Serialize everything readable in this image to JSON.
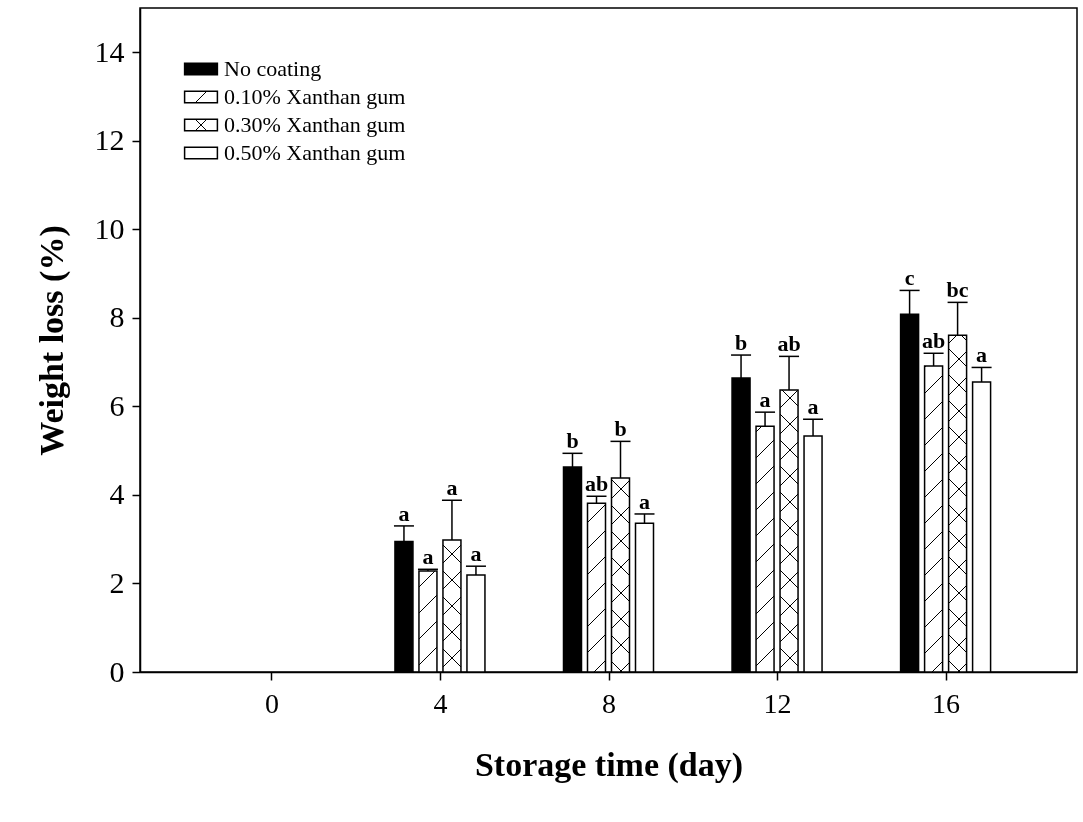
{
  "chart_data": {
    "type": "bar",
    "xlabel": "Storage time (day)",
    "ylabel": "Weight loss (%)",
    "x": [
      4,
      8,
      12,
      16
    ],
    "xlim": [
      -3,
      19
    ],
    "xticks": [
      0,
      4,
      8,
      12,
      16
    ],
    "ylim": [
      0,
      15
    ],
    "yticks": [
      0,
      2,
      4,
      6,
      8,
      10,
      12,
      14
    ],
    "legend": "top left",
    "grid": false,
    "series": [
      {
        "name": "No coating",
        "color": "#000000",
        "values": [
          2.95,
          4.63,
          6.64,
          8.08
        ],
        "errors": [
          [
            2.95,
            3.3
          ],
          [
            4.63,
            4.94
          ],
          [
            6.64,
            7.16
          ],
          [
            8.08,
            8.62
          ]
        ],
        "value_labels": [
          "a",
          "b",
          "b",
          "c"
        ]
      },
      {
        "name": "0.10% Xanthan gum",
        "color": "#ffffff",
        "values": [
          2.28,
          3.81,
          5.55,
          6.91
        ],
        "errors": [
          [
            2.28,
            2.32
          ],
          [
            3.81,
            3.97
          ],
          [
            5.55,
            5.87
          ],
          [
            6.91,
            7.2
          ]
        ],
        "value_labels": [
          "a",
          "ab",
          "a",
          "ab"
        ]
      },
      {
        "name": "0.30% Xanthan gum",
        "color": "#ffffff",
        "values": [
          2.98,
          4.38,
          6.37,
          7.61
        ],
        "errors": [
          [
            2.98,
            3.88
          ],
          [
            4.38,
            5.21
          ],
          [
            6.37,
            7.13
          ],
          [
            7.61,
            8.35
          ]
        ],
        "value_labels": [
          "a",
          "b",
          "ab",
          "bc"
        ]
      },
      {
        "name": "0.50% Xanthan gum",
        "color": "#ffffff",
        "values": [
          2.19,
          3.36,
          5.33,
          6.55
        ],
        "errors": [
          [
            2.19,
            2.39
          ],
          [
            3.36,
            3.57
          ],
          [
            5.33,
            5.71
          ],
          [
            6.55,
            6.88
          ]
        ],
        "value_labels": [
          "a",
          "a",
          "a",
          "a"
        ]
      }
    ]
  }
}
